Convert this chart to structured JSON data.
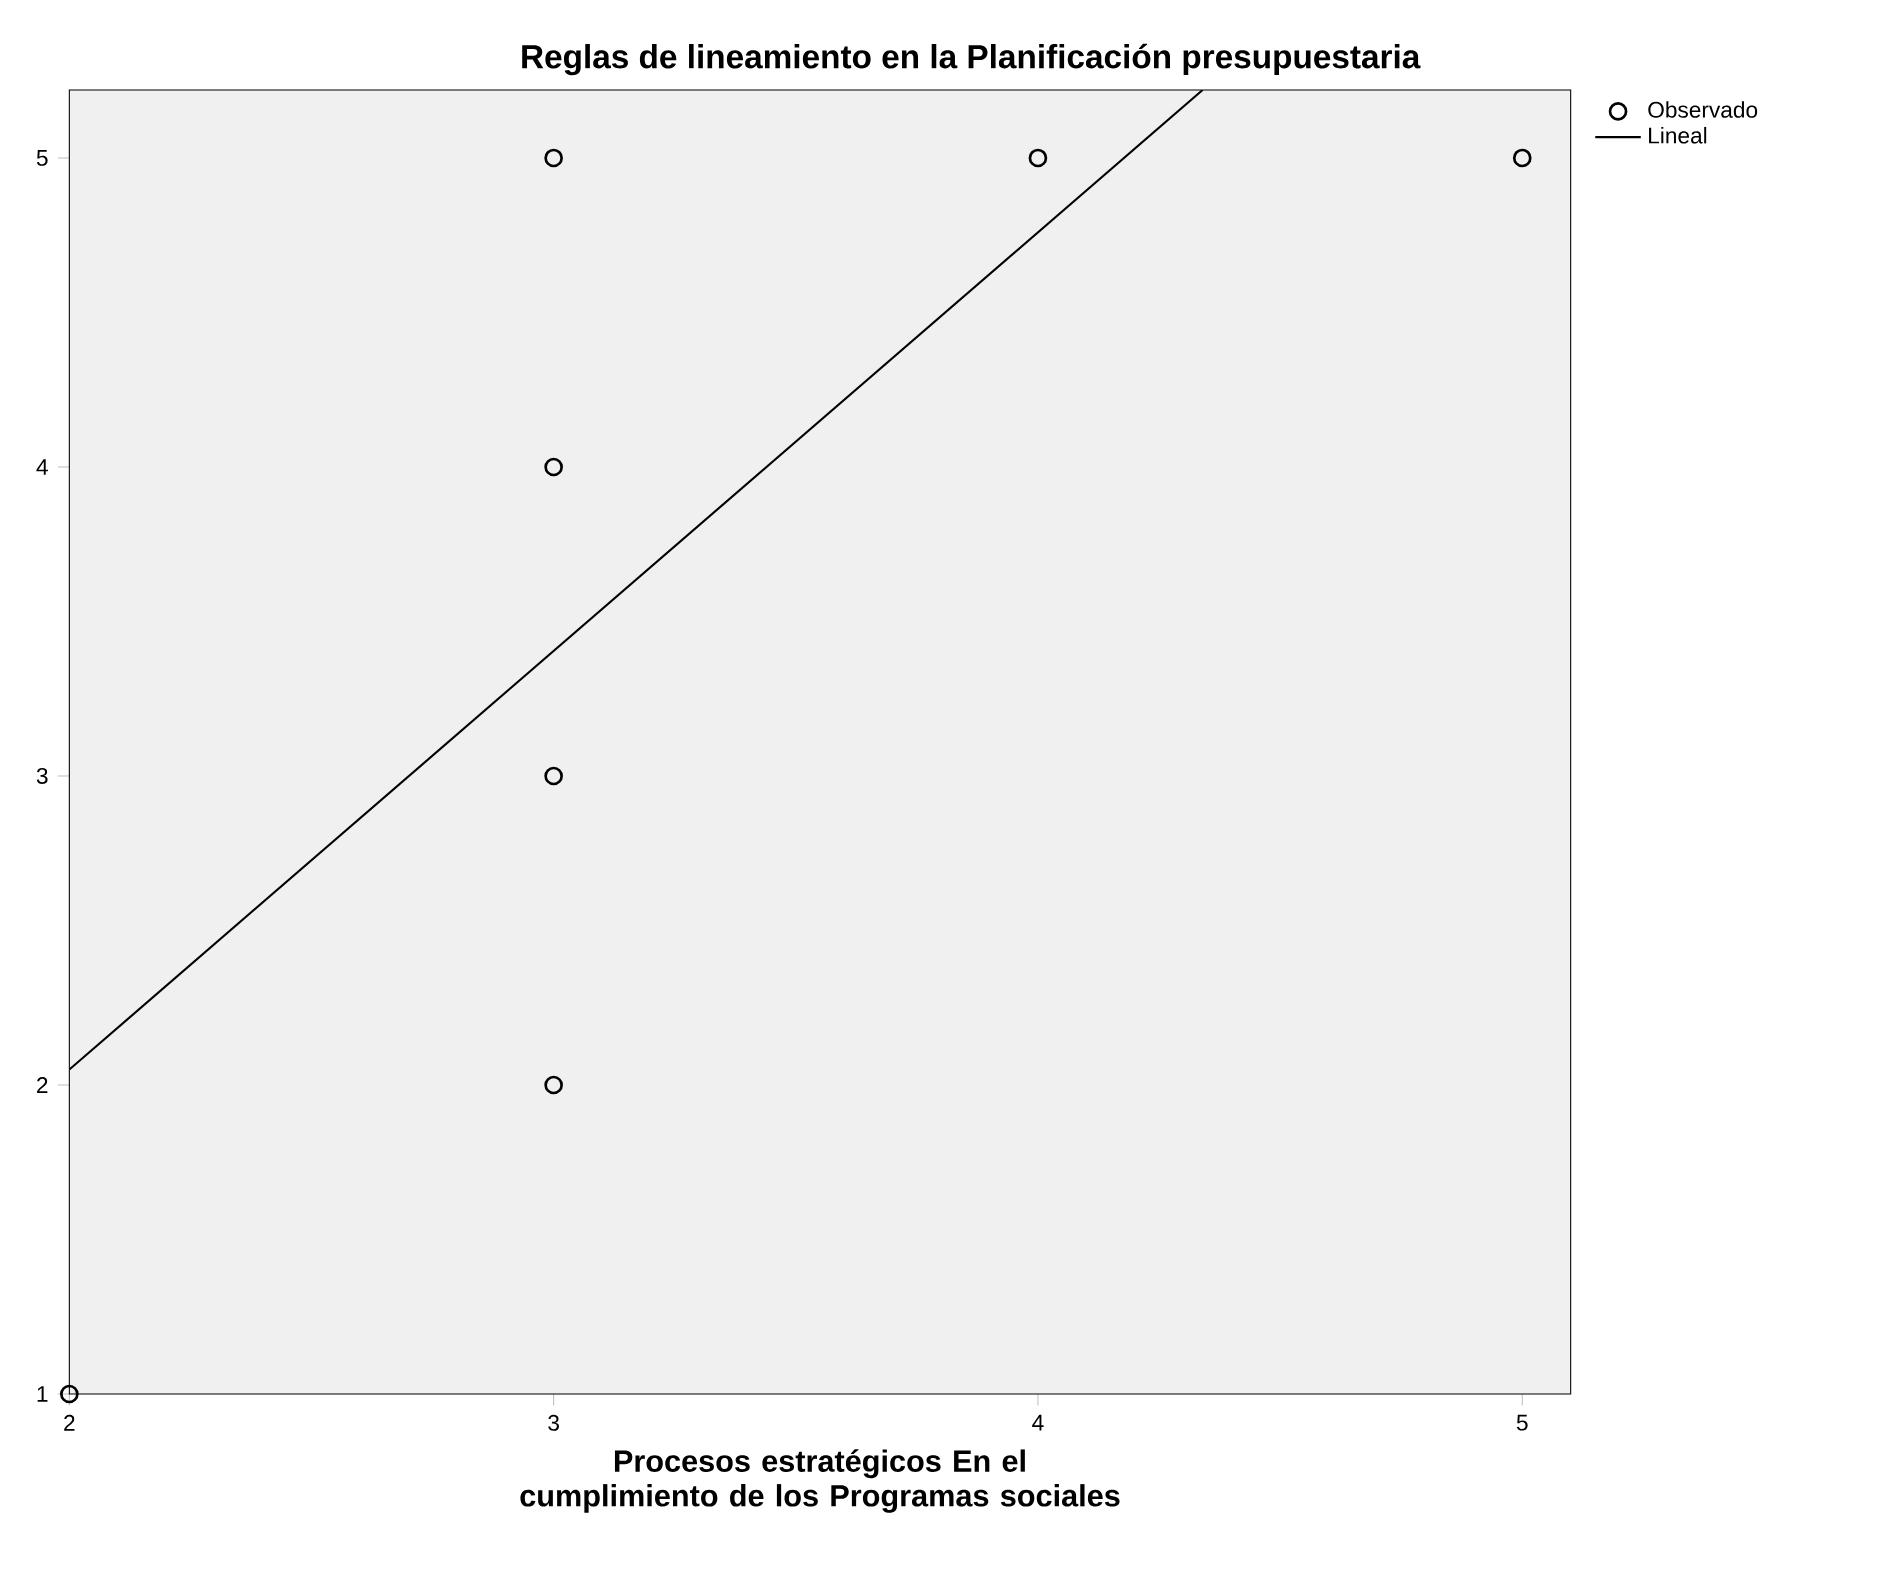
{
  "chart_data": {
    "type": "scatter",
    "title": "Reglas de lineamiento en la Planificación presupuestaria",
    "xlabel": "Procesos estratégicos En el cumplimiento de los Programas sociales",
    "series": [
      {
        "name": "Observado",
        "color": "#000000",
        "marker": "circle",
        "x": [
          2,
          3,
          3,
          3,
          3,
          4,
          5
        ],
        "values": [
          1,
          2,
          3,
          4,
          5,
          5,
          5
        ]
      },
      {
        "name": "Lineal",
        "type": "line",
        "color": "#000000",
        "marker": "none",
        "x": [
          2,
          4.34
        ],
        "values": [
          2.05,
          5.22
        ]
      }
    ],
    "xlim": [
      2,
      5.1
    ],
    "ylim": [
      1,
      5.22
    ],
    "xticks": [
      2,
      3,
      4,
      5
    ],
    "yticks": [
      1,
      2,
      3,
      4,
      5
    ],
    "grid": false,
    "legend": "top right"
  }
}
